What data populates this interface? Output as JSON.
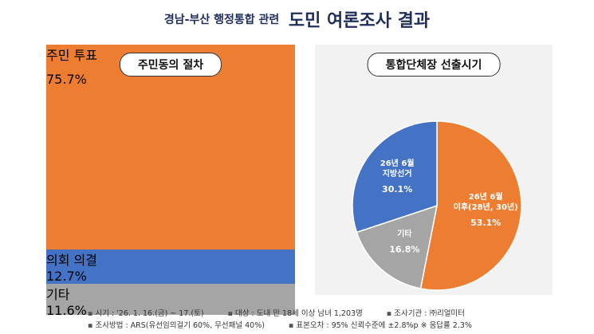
{
  "header": {
    "title_prefix": "경남-부산 행정통합 관련",
    "title_main": "도민 여론조사 결과"
  },
  "chart_data": [
    {
      "type": "bar",
      "title": "주민동의 절차",
      "categories": [
        "주민\n투표",
        "의회\n의결",
        "기타"
      ],
      "values": [
        75.7,
        12.7,
        11.6
      ],
      "value_labels": [
        "75.7%",
        "12.7%",
        "11.6%"
      ],
      "colors": [
        "#ED7D31",
        "#4472C4",
        "#A5A5A5"
      ]
    },
    {
      "type": "pie",
      "title": "통합단체장 선출시기",
      "categories": [
        "26년 6월\n이후(28년, 30년)",
        "기타",
        "26년 6월\n지방선거"
      ],
      "values": [
        53.1,
        16.8,
        30.1
      ],
      "value_labels": [
        "53.1%",
        "16.8%",
        "30.1%"
      ],
      "colors": [
        "#ED7D31",
        "#A5A5A5",
        "#4472C4"
      ]
    }
  ],
  "footnotes": [
    [
      "시기 : '26. 1. 16.(금) ~ 17.(토)",
      "대상 : 도내 만 18세 이상 남녀 1,203명",
      "조사기관 : ㈜리얼미터"
    ],
    [
      "조사방법 : ARS(유선임의걸기 60%, 무선패널 40%)",
      "표본오차 : 95% 신뢰수준에 ±2.8%p  ※ 응답률 2.3%"
    ]
  ]
}
